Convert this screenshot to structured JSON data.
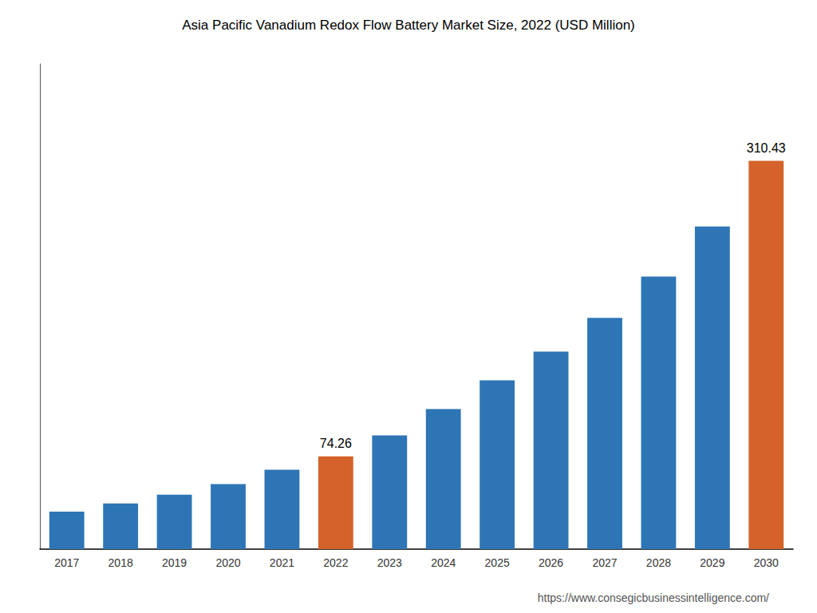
{
  "chart_data": {
    "type": "bar",
    "title": "Asia Pacific Vanadium Redox Flow Battery Market Size, 2022 (USD Million)",
    "categories": [
      "2017",
      "2018",
      "2019",
      "2020",
      "2021",
      "2022",
      "2023",
      "2024",
      "2025",
      "2026",
      "2027",
      "2028",
      "2029",
      "2030"
    ],
    "values": [
      30.0,
      36.5,
      43.5,
      52.0,
      63.5,
      74.26,
      91.0,
      112.0,
      135.0,
      158.0,
      185.0,
      218.0,
      258.0,
      310.43
    ],
    "colors": [
      "#2e75b6",
      "#2e75b6",
      "#2e75b6",
      "#2e75b6",
      "#2e75b6",
      "#d4622a",
      "#2e75b6",
      "#2e75b6",
      "#2e75b6",
      "#2e75b6",
      "#2e75b6",
      "#2e75b6",
      "#2e75b6",
      "#d4622a"
    ],
    "annotations": [
      {
        "x": "2022",
        "y": 74.26,
        "text": "74.26"
      },
      {
        "x": "2030",
        "y": 310.43,
        "text": "310.43"
      },
      {
        "text": "https://www.consegicbusinessintelligence.com/"
      }
    ],
    "ylim": [
      0,
      388.0375
    ],
    "grid": false,
    "tick_labels": "x"
  }
}
